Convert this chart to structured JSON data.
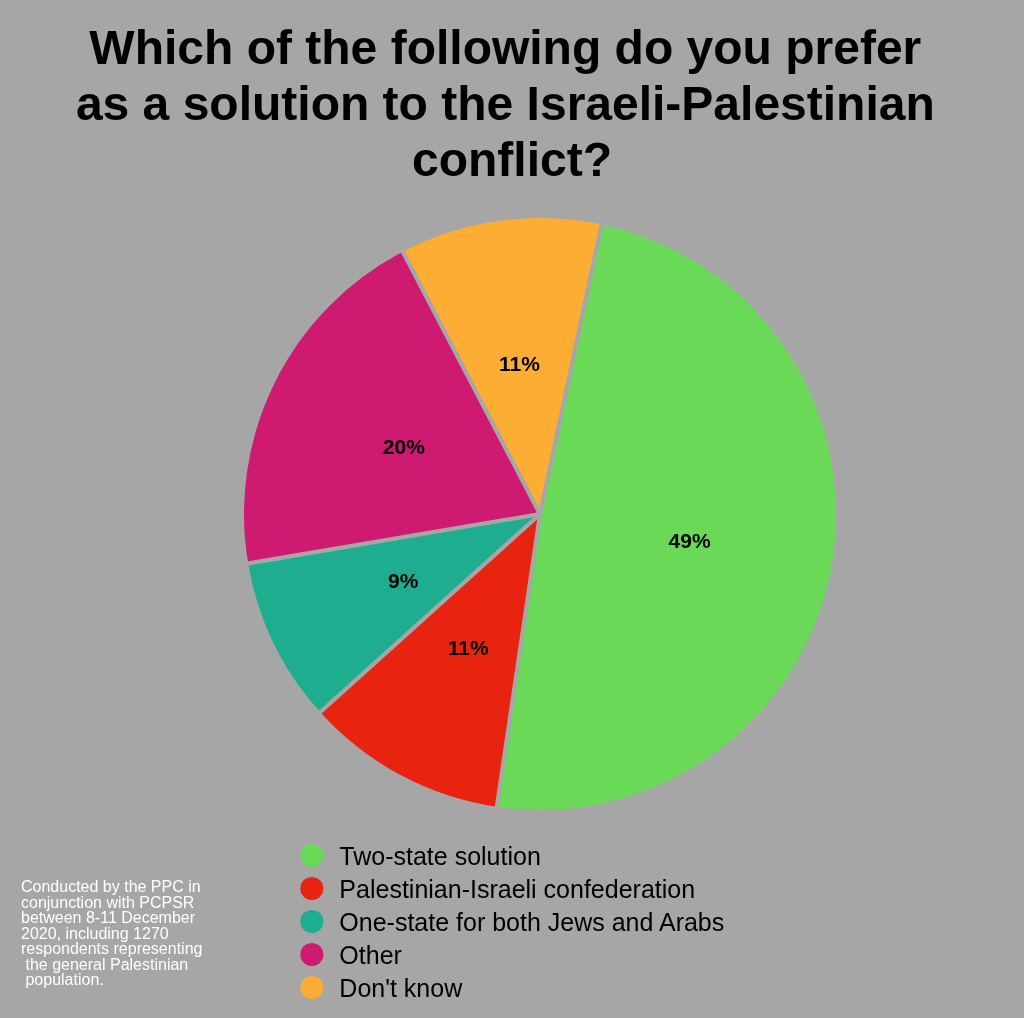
{
  "chart_data": {
    "type": "pie",
    "title": "Which of the following do you prefer as a solution to the Israeli-Palestinian conflict?",
    "categories": [
      "Two-state solution",
      "Palestinian-Israeli confederation",
      "One-state for both Jews and Arabs",
      "Other",
      "Don't know"
    ],
    "values": [
      49,
      11,
      9,
      20,
      11
    ],
    "colors": [
      "#6ad958",
      "#e8230f",
      "#1fad8f",
      "#cf1a72",
      "#fcae34"
    ],
    "value_labels": [
      "49%",
      "11%",
      "9%",
      "20%",
      "11%"
    ],
    "legend": "bottom",
    "annotations": [
      "Conducted by the PPC in conjunction with PCPSR between 8-11 December 2020, including 1270 respondents representing the general Palestinian population."
    ]
  }
}
